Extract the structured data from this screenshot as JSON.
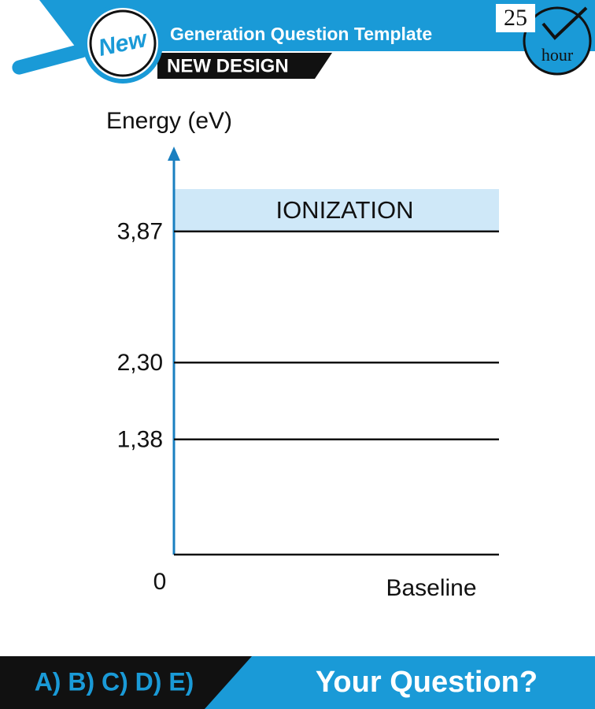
{
  "header": {
    "badge": "New",
    "title": "Generation Question Template",
    "subtitle": "NEW DESIGN",
    "clock_number": "25",
    "clock_unit": "hour"
  },
  "diagram": {
    "y_axis_label": "Energy (eV)",
    "x_axis_label": "Baseline",
    "region_label": "IONIZATION",
    "levels": [
      0,
      {
        "value": 1.38,
        "label": "1,38"
      },
      {
        "value": 2.3,
        "label": "2,30"
      },
      {
        "value": 3.87,
        "label": "3,87"
      }
    ]
  },
  "footer": {
    "options": "A) B) C) D) E)",
    "question": "Your Question?"
  }
}
